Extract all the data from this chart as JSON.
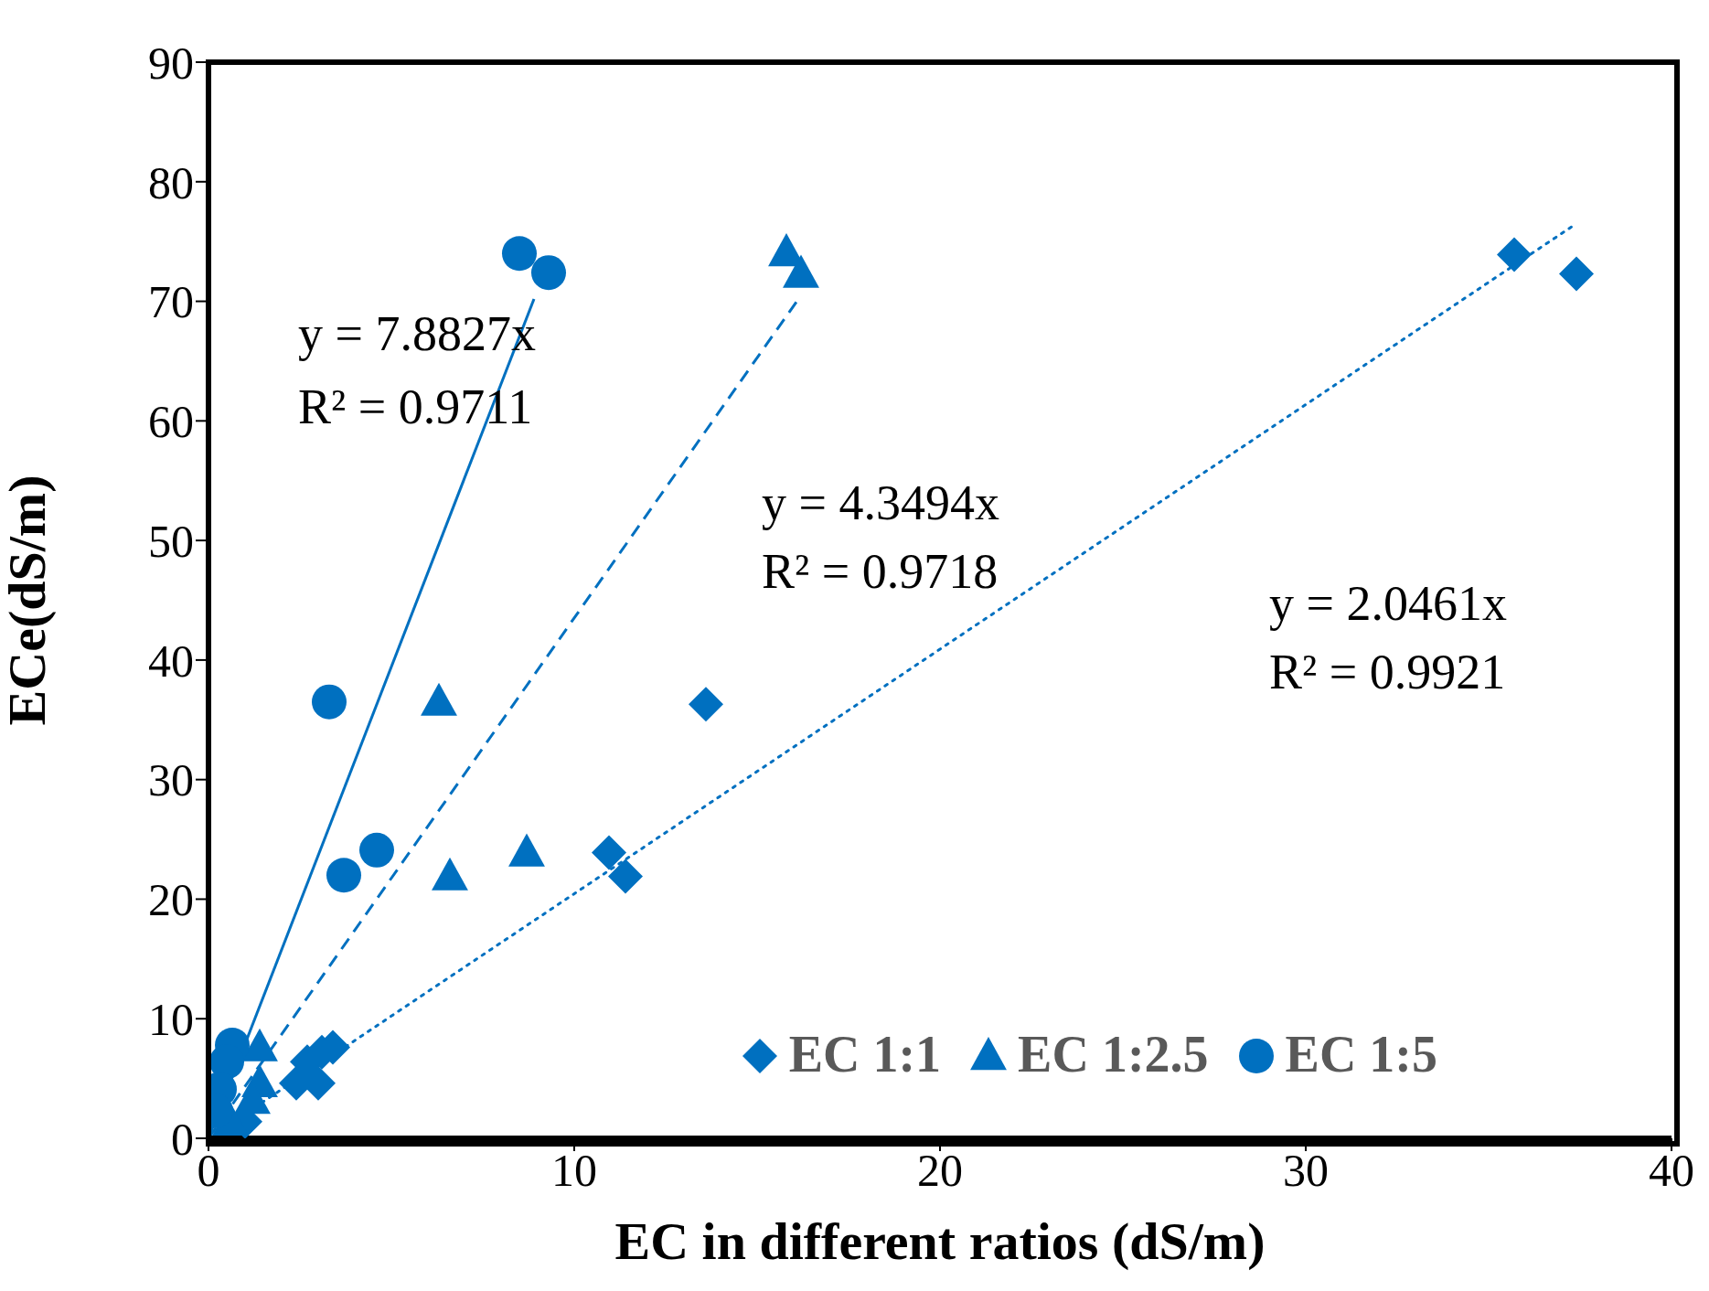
{
  "chart_data": {
    "type": "scatter",
    "xlabel": "EC in different ratios (dS/m)",
    "ylabel": "ECe(dS/m)",
    "xlim": [
      0,
      40
    ],
    "xticks": [
      0,
      10,
      20,
      30,
      40
    ],
    "ylim": [
      0,
      90
    ],
    "yticks": [
      0,
      10,
      20,
      30,
      40,
      50,
      60,
      70,
      80,
      90
    ],
    "grid": false,
    "legend": "bottom right",
    "series": [
      {
        "name": "EC 1:1",
        "type": "scatter",
        "marker": "diamond",
        "color": "#0070c0",
        "x": [
          35.7,
          37.4,
          13.6,
          10.95,
          11.4,
          3.4,
          3.1,
          2.7,
          2.4,
          3.0,
          1.0
        ],
        "values": [
          73.9,
          72.3,
          36.3,
          23.9,
          21.9,
          7.6,
          7.2,
          6.4,
          4.6,
          4.6,
          1.4
        ]
      },
      {
        "name": "EC 1:2.5",
        "type": "scatter",
        "marker": "triangle",
        "color": "#0070c0",
        "x": [
          15.8,
          16.2,
          6.3,
          6.6,
          8.7,
          1.4,
          1.4,
          1.2,
          0.6
        ],
        "values": [
          74.1,
          72.3,
          36.5,
          21.9,
          23.9,
          7.6,
          4.6,
          3.2,
          1.4
        ]
      },
      {
        "name": "EC 1:5",
        "type": "scatter",
        "marker": "circle",
        "color": "#0070c0",
        "x": [
          8.5,
          9.3,
          3.3,
          3.7,
          4.6,
          0.65,
          0.5,
          0.3,
          0.2
        ],
        "values": [
          74.0,
          72.4,
          36.5,
          22.0,
          24.1,
          7.8,
          6.4,
          4.1,
          2.3
        ]
      },
      {
        "type": "line",
        "marker": "none",
        "line_style": "solid",
        "color": "#0070c0",
        "x": [
          0,
          8.9
        ],
        "values": [
          0,
          70.2
        ]
      },
      {
        "type": "line",
        "marker": "none",
        "line_style": "dashed",
        "color": "#0070c0",
        "x": [
          0,
          16.2
        ],
        "values": [
          0,
          70.5
        ]
      },
      {
        "type": "line",
        "marker": "none",
        "line_style": "dotted",
        "color": "#0070c0",
        "x": [
          0,
          37.4
        ],
        "values": [
          0,
          76.5
        ]
      }
    ],
    "annotations": [
      "y = 7.8827x",
      "R² = 0.9711",
      "y = 4.3494x",
      "R² = 0.9718",
      "y = 2.0461x",
      "R² = 0.9921"
    ]
  }
}
